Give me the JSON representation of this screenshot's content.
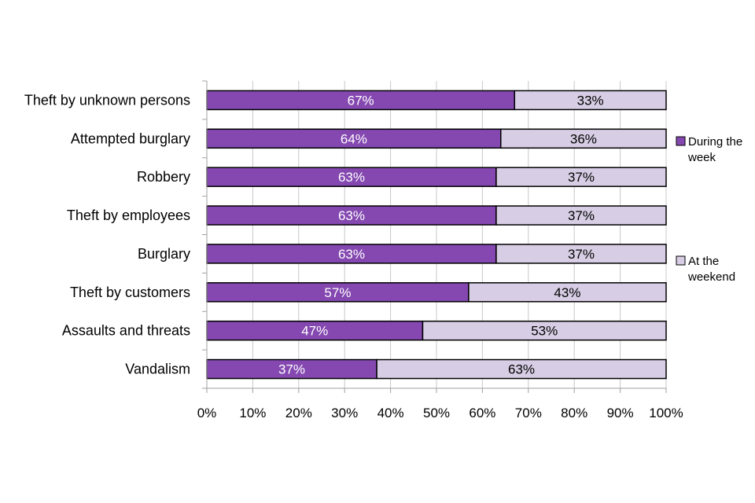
{
  "chart_data": {
    "type": "bar",
    "orientation": "horizontal",
    "stacked": true,
    "percent_stacked": true,
    "title": "",
    "xlabel": "",
    "ylabel": "",
    "xlim": [
      0,
      100
    ],
    "xticks": [
      "0%",
      "10%",
      "20%",
      "30%",
      "40%",
      "50%",
      "60%",
      "70%",
      "80%",
      "90%",
      "100%"
    ],
    "grid": true,
    "legend_position": "right",
    "categories": [
      "Theft by unknown persons",
      "Attempted burglary",
      "Robbery",
      "Theft by employees",
      "Burglary",
      "Theft by customers",
      "Assaults and threats",
      "Vandalism"
    ],
    "series": [
      {
        "name": "During the week",
        "legend_lines": [
          "During the",
          "week"
        ],
        "color": "#8448b0",
        "label_color": "#ffffff",
        "values": [
          67,
          64,
          63,
          63,
          63,
          57,
          47,
          37
        ],
        "labels": [
          "67%",
          "64%",
          "63%",
          "63%",
          "63%",
          "57%",
          "47%",
          "37%"
        ]
      },
      {
        "name": "At the weekend",
        "legend_lines": [
          "At the",
          "weekend"
        ],
        "color": "#d7cde4",
        "label_color": "#000000",
        "values": [
          33,
          36,
          37,
          37,
          37,
          43,
          53,
          63
        ],
        "labels": [
          "33%",
          "36%",
          "37%",
          "37%",
          "37%",
          "43%",
          "53%",
          "63%"
        ]
      }
    ]
  }
}
